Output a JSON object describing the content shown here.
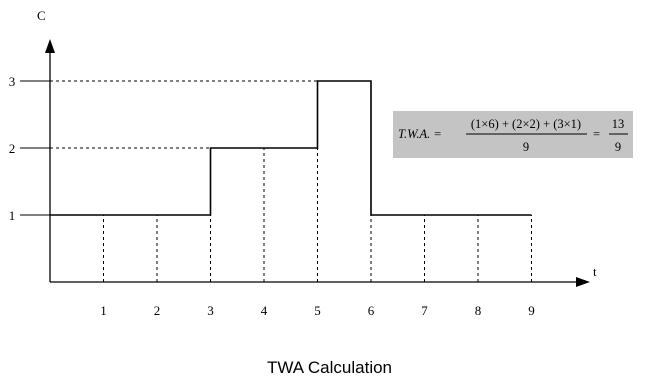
{
  "caption": "TWA Calculation",
  "chart_data": {
    "type": "line",
    "step": "post",
    "xlabel": "t",
    "ylabel": "C",
    "x_ticks": [
      "1",
      "2",
      "3",
      "4",
      "5",
      "6",
      "7",
      "8",
      "9"
    ],
    "y_ticks": [
      "1",
      "2",
      "3"
    ],
    "xlim": [
      0,
      10
    ],
    "ylim": [
      0,
      4
    ],
    "series": [
      {
        "points": [
          [
            0,
            1
          ],
          [
            3,
            1
          ],
          [
            3,
            2
          ],
          [
            5,
            2
          ],
          [
            5,
            3
          ],
          [
            6,
            3
          ],
          [
            6,
            1
          ],
          [
            9,
            1
          ]
        ]
      }
    ],
    "vertical_dashed_at": [
      1,
      2,
      3,
      4,
      5,
      6,
      7,
      8,
      9
    ],
    "horizontal_dashed_at": [
      2,
      3
    ],
    "annotation": {
      "lhs": "T.W.A. =",
      "numerator": "(1×6) + (2×2) + (3×1)",
      "denominator": "9",
      "equals": "=",
      "result_numerator": "13",
      "result_denominator": "9",
      "background_color": "#c4c4c4"
    },
    "colors": {
      "line": "#000000",
      "dashes": "#000000"
    }
  }
}
